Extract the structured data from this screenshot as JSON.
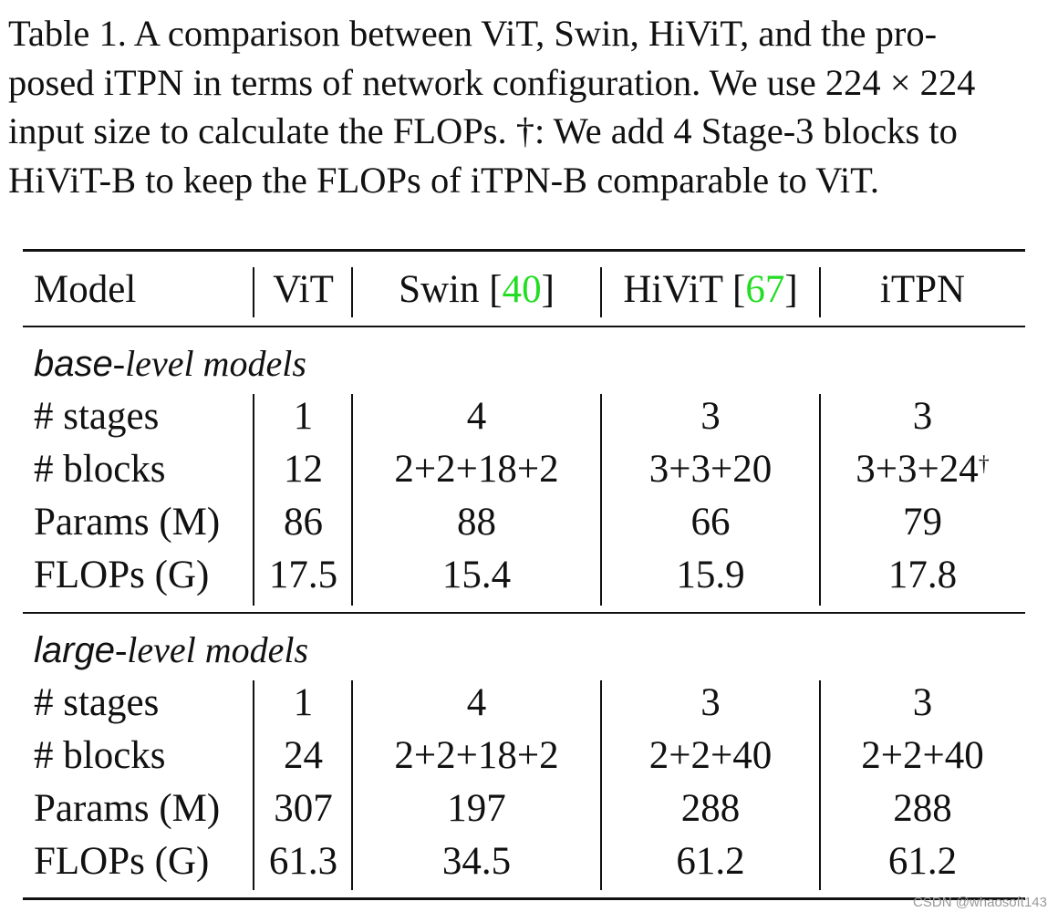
{
  "caption": {
    "lines": [
      "Table 1.  A comparison between ViT, Swin, HiViT, and the pro-",
      "posed iTPN in terms of network configuration. We use 224 × 224",
      "input size to calculate the FLOPs. †: We add 4 Stage-3 blocks to",
      "HiViT-B to keep the FLOPs of iTPN-B comparable to ViT."
    ]
  },
  "table": {
    "header": {
      "model": "Model",
      "vit": "ViT",
      "swin": "Swin [",
      "swin_cite": "40",
      "swin_close": "]",
      "hivit": "HiViT [",
      "hivit_cite": "67",
      "hivit_close": "]",
      "itpn": "iTPN"
    },
    "sections": [
      {
        "title_sans": "base",
        "title_rest": "-level models",
        "rows": [
          {
            "label": "# stages",
            "vit": "1",
            "swin": "4",
            "hivit": "3",
            "itpn": "3",
            "itpn_sup": ""
          },
          {
            "label": "# blocks",
            "vit": "12",
            "swin": "2+2+18+2",
            "hivit": "3+3+20",
            "itpn": "3+3+24",
            "itpn_sup": "†"
          },
          {
            "label": "Params (M)",
            "vit": "86",
            "swin": "88",
            "hivit": "66",
            "itpn": "79",
            "itpn_sup": ""
          },
          {
            "label": "FLOPs (G)",
            "vit": "17.5",
            "swin": "15.4",
            "hivit": "15.9",
            "itpn": "17.8",
            "itpn_sup": ""
          }
        ]
      },
      {
        "title_sans": "large",
        "title_rest": "-level models",
        "rows": [
          {
            "label": "# stages",
            "vit": "1",
            "swin": "4",
            "hivit": "3",
            "itpn": "3",
            "itpn_sup": ""
          },
          {
            "label": "# blocks",
            "vit": "24",
            "swin": "2+2+18+2",
            "hivit": "2+2+40",
            "itpn": "2+2+40",
            "itpn_sup": ""
          },
          {
            "label": "Params (M)",
            "vit": "307",
            "swin": "197",
            "hivit": "288",
            "itpn": "288",
            "itpn_sup": ""
          },
          {
            "label": "FLOPs (G)",
            "vit": "61.3",
            "swin": "34.5",
            "hivit": "61.2",
            "itpn": "61.2",
            "itpn_sup": ""
          }
        ]
      }
    ]
  },
  "colors": {
    "citation": "#22dd22",
    "text": "#111111"
  },
  "watermark": "CSDN @whaosoft143"
}
